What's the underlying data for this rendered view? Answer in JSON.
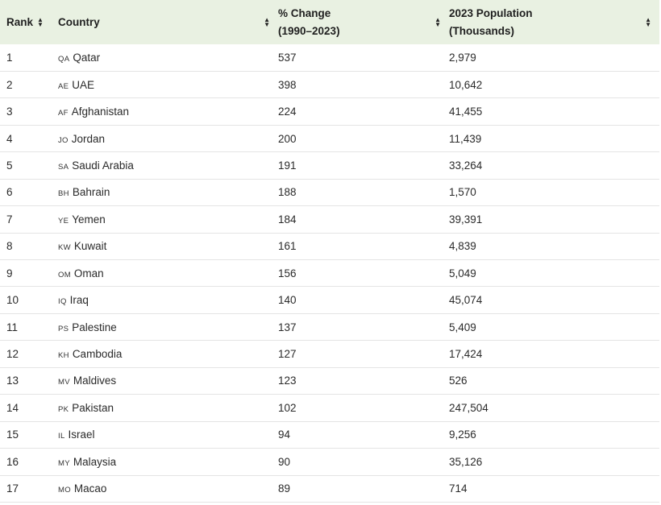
{
  "table": {
    "headers": {
      "rank": "Rank",
      "country": "Country",
      "change": "% Change\n(1990–2023)",
      "population": "2023 Population\n(Thousands)"
    },
    "rows": [
      {
        "rank": "1",
        "code": "QA",
        "country": "Qatar",
        "change": "537",
        "population": "2,979"
      },
      {
        "rank": "2",
        "code": "AE",
        "country": "UAE",
        "change": "398",
        "population": "10,642"
      },
      {
        "rank": "3",
        "code": "AF",
        "country": "Afghanistan",
        "change": "224",
        "population": "41,455"
      },
      {
        "rank": "4",
        "code": "JO",
        "country": "Jordan",
        "change": "200",
        "population": "11,439"
      },
      {
        "rank": "5",
        "code": "SA",
        "country": "Saudi Arabia",
        "change": "191",
        "population": "33,264"
      },
      {
        "rank": "6",
        "code": "BH",
        "country": "Bahrain",
        "change": "188",
        "population": "1,570"
      },
      {
        "rank": "7",
        "code": "YE",
        "country": "Yemen",
        "change": "184",
        "population": "39,391"
      },
      {
        "rank": "8",
        "code": "KW",
        "country": "Kuwait",
        "change": "161",
        "population": "4,839"
      },
      {
        "rank": "9",
        "code": "OM",
        "country": "Oman",
        "change": "156",
        "population": "5,049"
      },
      {
        "rank": "10",
        "code": "IQ",
        "country": "Iraq",
        "change": "140",
        "population": "45,074"
      },
      {
        "rank": "11",
        "code": "PS",
        "country": "Palestine",
        "change": "137",
        "population": "5,409"
      },
      {
        "rank": "12",
        "code": "KH",
        "country": "Cambodia",
        "change": "127",
        "population": "17,424"
      },
      {
        "rank": "13",
        "code": "MV",
        "country": "Maldives",
        "change": "123",
        "population": "526"
      },
      {
        "rank": "14",
        "code": "PK",
        "country": "Pakistan",
        "change": "102",
        "population": "247,504"
      },
      {
        "rank": "15",
        "code": "IL",
        "country": "Israel",
        "change": "94",
        "population": "9,256"
      },
      {
        "rank": "16",
        "code": "MY",
        "country": "Malaysia",
        "change": "90",
        "population": "35,126"
      },
      {
        "rank": "17",
        "code": "MO",
        "country": "Macao",
        "change": "89",
        "population": "714"
      }
    ]
  },
  "style": {
    "header_bg": "#e9f1e2",
    "row_border": "#e4e4e4"
  },
  "icons": {
    "sort": "sort-up-down-icon"
  }
}
